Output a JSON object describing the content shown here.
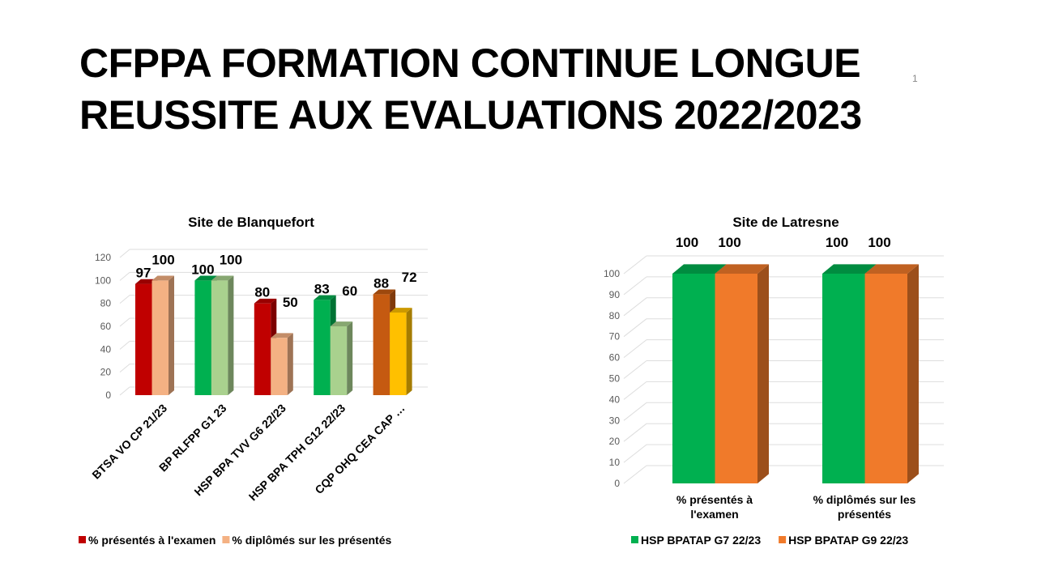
{
  "slide": {
    "title_line1": "CFPPA FORMATION CONTINUE LONGUE",
    "title_line2": "REUSSITE AUX EVALUATIONS 2022/2023",
    "page_number": "1"
  },
  "chart_data": [
    {
      "type": "bar",
      "title": "Site de Blanquefort",
      "ylim": [
        0,
        120
      ],
      "yticks": [
        0,
        20,
        40,
        60,
        80,
        100,
        120
      ],
      "grid": true,
      "categories": [
        "BTSA VO CP 21/23",
        "BP RLFPP G1 23",
        "HSP BPA TVV G6 22/23",
        "HSP BPA TPH G12 22/23",
        "CQP OHQ CEA CAP …"
      ],
      "series": [
        {
          "name": "% présentés à l'examen",
          "color": "#c00000",
          "values": [
            97,
            100,
            80,
            83,
            88
          ],
          "bar_colors": [
            "#c00000",
            "#00b050",
            "#c00000",
            "#00b050",
            "#c55a11"
          ]
        },
        {
          "name": "% diplômés sur les présentés",
          "color": "#f4b183",
          "values": [
            100,
            100,
            50,
            60,
            72
          ],
          "bar_colors": [
            "#f4b183",
            "#a9d18e",
            "#f4b183",
            "#a9d18e",
            "#ffc000"
          ]
        }
      ],
      "legend": "bottom"
    },
    {
      "type": "bar",
      "title": "Site de Latresne",
      "ylim": [
        0,
        100
      ],
      "yticks": [
        0,
        10,
        20,
        30,
        40,
        50,
        60,
        70,
        80,
        90,
        100
      ],
      "grid": true,
      "categories": [
        "% présentés à l'examen",
        "% diplômés sur les présentés"
      ],
      "series": [
        {
          "name": "HSP BPATAP G7 22/23",
          "color": "#00b050",
          "values": [
            100,
            100
          ]
        },
        {
          "name": "HSP BPATAP G9 22/23",
          "color": "#f07a2a",
          "values": [
            100,
            100
          ]
        }
      ],
      "legend": "bottom"
    }
  ]
}
